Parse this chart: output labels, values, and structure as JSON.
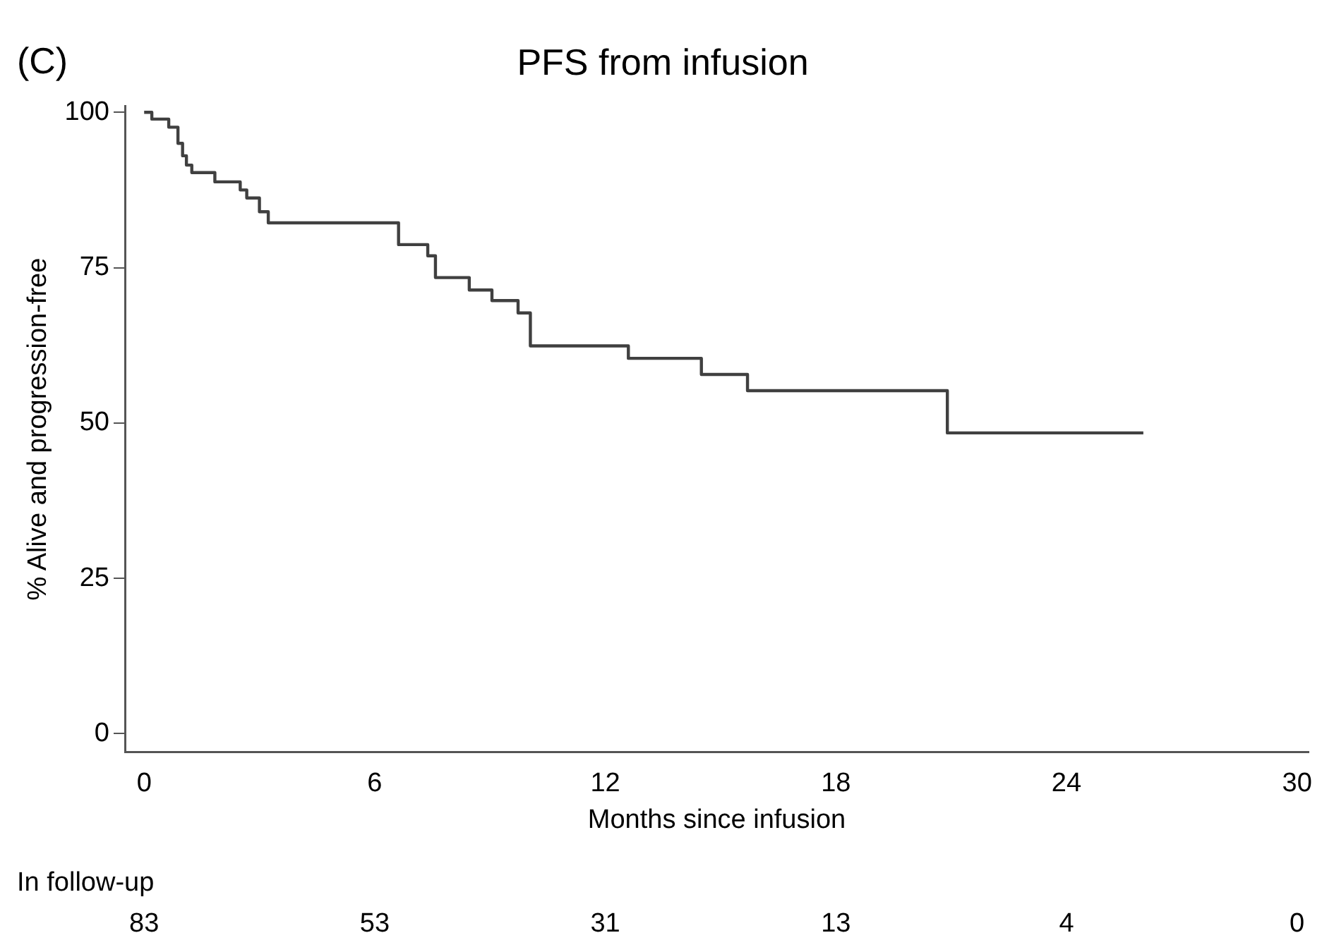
{
  "chart_data": {
    "type": "step",
    "title": "PFS from infusion",
    "xlabel": "Months since infusion",
    "ylabel": "% Alive and progression-free",
    "x": [
      0,
      0.2,
      0.64,
      0.88,
      1.0,
      1.1,
      1.24,
      1.84,
      2.5,
      2.67,
      3.0,
      3.23,
      6.62,
      7.38,
      7.58,
      8.46,
      9.05,
      9.73,
      10.05,
      12.6,
      14.5,
      15.7,
      20.9,
      26.0
    ],
    "series": [
      {
        "color": "#404040",
        "values": [
          100,
          98.9,
          97.6,
          95,
          93,
          91.5,
          90.3,
          88.8,
          87.5,
          86.2,
          84,
          82.2,
          78.7,
          76.9,
          73.4,
          71.4,
          69.7,
          67.7,
          62.4,
          60.4,
          57.8,
          55.2,
          48.4,
          48.4
        ]
      }
    ],
    "xlim": [
      -0.5,
      30.3
    ],
    "xticks": [
      0,
      6,
      12,
      18,
      24,
      30
    ],
    "ylim": [
      -3,
      101
    ],
    "yticks": [
      0,
      25,
      50,
      75,
      100
    ],
    "grid": false,
    "legend": false,
    "marker": "none",
    "line_style": "solid",
    "annotations": [
      "(C)",
      "In follow-up",
      "83",
      "53",
      "31",
      "13",
      "4",
      "0"
    ]
  }
}
